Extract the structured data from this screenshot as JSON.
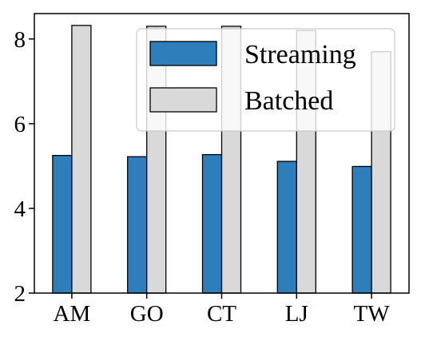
{
  "chart_data": {
    "type": "bar",
    "title": "",
    "xlabel": "",
    "ylabel": "",
    "categories": [
      "AM",
      "GO",
      "CT",
      "LJ",
      "TW"
    ],
    "series": [
      {
        "name": "Streaming",
        "values": [
          5.25,
          5.22,
          5.27,
          5.11,
          4.99
        ],
        "color": "#2f7ebc"
      },
      {
        "name": "Batched",
        "values": [
          8.32,
          8.3,
          8.3,
          8.2,
          7.7
        ],
        "color": "#d9d9d9"
      }
    ],
    "ylim": [
      2,
      8.6
    ],
    "yticks": [
      2,
      4,
      6,
      8
    ],
    "ytick_labels": [
      "2",
      "4",
      "6",
      "8"
    ],
    "grid": false,
    "legend_position": "top-right"
  }
}
